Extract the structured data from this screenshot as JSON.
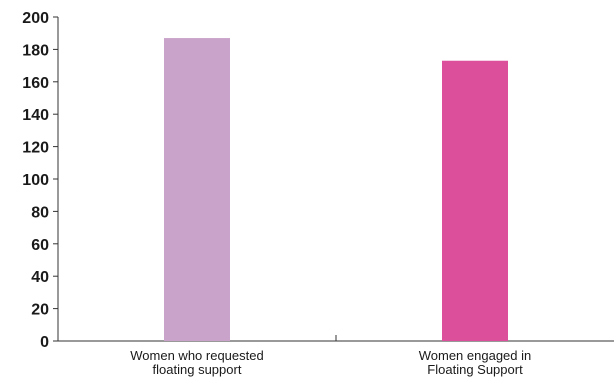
{
  "chart_data": {
    "type": "bar",
    "categories": [
      [
        "Women who requested",
        "floating support"
      ],
      [
        "Women engaged in",
        "Floating Support"
      ]
    ],
    "values": [
      187,
      173
    ],
    "colors": [
      "#c9a3c9",
      "#dc4f9b"
    ],
    "ylim": [
      0,
      200
    ],
    "yticks": [
      0,
      20,
      40,
      60,
      80,
      100,
      120,
      140,
      160,
      180,
      200
    ],
    "grid": false,
    "title": "",
    "xlabel": "",
    "ylabel": ""
  }
}
